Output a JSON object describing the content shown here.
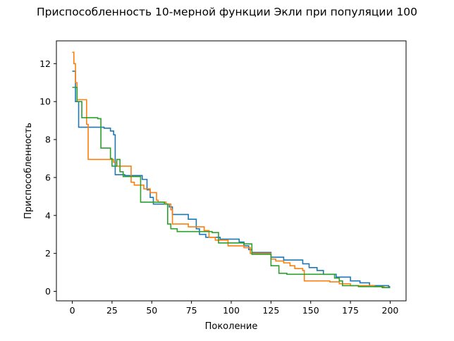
{
  "chart_data": {
    "type": "line",
    "title": "Приспособленность 10-мерной функции Экли при популяции 100",
    "xlabel": "Поколение",
    "ylabel": "Приспособленность",
    "xlim": [
      -10,
      210
    ],
    "ylim": [
      -0.5,
      13.2
    ],
    "xticks": [
      0,
      25,
      50,
      75,
      100,
      125,
      150,
      175,
      200
    ],
    "yticks": [
      0,
      2,
      4,
      6,
      8,
      10,
      12
    ],
    "grid": false,
    "series": [
      {
        "color": "#1f77b4",
        "points": [
          [
            0,
            11.6
          ],
          [
            2,
            11.6
          ],
          [
            2,
            10.0
          ],
          [
            4,
            10.0
          ],
          [
            4,
            8.65
          ],
          [
            20,
            8.65
          ],
          [
            20,
            8.6
          ],
          [
            24,
            8.6
          ],
          [
            24,
            8.45
          ],
          [
            26,
            8.45
          ],
          [
            26,
            8.25
          ],
          [
            27,
            8.25
          ],
          [
            27,
            6.15
          ],
          [
            33,
            6.15
          ],
          [
            33,
            6.1
          ],
          [
            44,
            6.1
          ],
          [
            44,
            5.9
          ],
          [
            47,
            5.9
          ],
          [
            47,
            5.35
          ],
          [
            49,
            5.35
          ],
          [
            49,
            4.95
          ],
          [
            51,
            4.95
          ],
          [
            51,
            4.6
          ],
          [
            61,
            4.6
          ],
          [
            61,
            4.45
          ],
          [
            63,
            4.45
          ],
          [
            63,
            4.05
          ],
          [
            73,
            4.05
          ],
          [
            73,
            3.8
          ],
          [
            78,
            3.8
          ],
          [
            78,
            3.3
          ],
          [
            80,
            3.3
          ],
          [
            80,
            3.0
          ],
          [
            84,
            3.0
          ],
          [
            84,
            2.85
          ],
          [
            93,
            2.85
          ],
          [
            93,
            2.75
          ],
          [
            105,
            2.75
          ],
          [
            105,
            2.6
          ],
          [
            108,
            2.6
          ],
          [
            108,
            2.4
          ],
          [
            111,
            2.4
          ],
          [
            111,
            2.2
          ],
          [
            113,
            2.2
          ],
          [
            113,
            2.05
          ],
          [
            125,
            2.05
          ],
          [
            125,
            1.8
          ],
          [
            133,
            1.8
          ],
          [
            133,
            1.65
          ],
          [
            145,
            1.65
          ],
          [
            145,
            1.45
          ],
          [
            149,
            1.45
          ],
          [
            149,
            1.25
          ],
          [
            154,
            1.25
          ],
          [
            154,
            1.1
          ],
          [
            158,
            1.1
          ],
          [
            158,
            0.9
          ],
          [
            166,
            0.9
          ],
          [
            166,
            0.75
          ],
          [
            175,
            0.75
          ],
          [
            175,
            0.55
          ],
          [
            181,
            0.55
          ],
          [
            181,
            0.45
          ],
          [
            187,
            0.45
          ],
          [
            187,
            0.3
          ],
          [
            199,
            0.3
          ],
          [
            199,
            0.25
          ],
          [
            200,
            0.25
          ]
        ]
      },
      {
        "color": "#ff7f0e",
        "points": [
          [
            0,
            12.6
          ],
          [
            1,
            12.6
          ],
          [
            1,
            12.0
          ],
          [
            2,
            12.0
          ],
          [
            2,
            11.0
          ],
          [
            3,
            11.0
          ],
          [
            3,
            10.1
          ],
          [
            9,
            10.1
          ],
          [
            9,
            8.8
          ],
          [
            10,
            8.8
          ],
          [
            10,
            6.95
          ],
          [
            26,
            6.95
          ],
          [
            26,
            6.8
          ],
          [
            28,
            6.8
          ],
          [
            28,
            6.6
          ],
          [
            37,
            6.6
          ],
          [
            37,
            5.75
          ],
          [
            39,
            5.75
          ],
          [
            39,
            5.6
          ],
          [
            45,
            5.6
          ],
          [
            45,
            5.4
          ],
          [
            49,
            5.4
          ],
          [
            49,
            5.2
          ],
          [
            53,
            5.2
          ],
          [
            53,
            4.8
          ],
          [
            54,
            4.8
          ],
          [
            54,
            4.7
          ],
          [
            59,
            4.7
          ],
          [
            59,
            4.6
          ],
          [
            62,
            4.6
          ],
          [
            62,
            4.3
          ],
          [
            63,
            4.3
          ],
          [
            63,
            3.55
          ],
          [
            73,
            3.55
          ],
          [
            73,
            3.4
          ],
          [
            83,
            3.4
          ],
          [
            83,
            3.2
          ],
          [
            86,
            3.2
          ],
          [
            86,
            2.85
          ],
          [
            90,
            2.85
          ],
          [
            90,
            2.7
          ],
          [
            98,
            2.7
          ],
          [
            98,
            2.4
          ],
          [
            108,
            2.4
          ],
          [
            108,
            2.3
          ],
          [
            112,
            2.3
          ],
          [
            112,
            2.0
          ],
          [
            125,
            2.0
          ],
          [
            125,
            1.7
          ],
          [
            128,
            1.7
          ],
          [
            128,
            1.6
          ],
          [
            133,
            1.6
          ],
          [
            133,
            1.5
          ],
          [
            137,
            1.5
          ],
          [
            137,
            1.35
          ],
          [
            140,
            1.35
          ],
          [
            140,
            1.2
          ],
          [
            145,
            1.2
          ],
          [
            145,
            1.1
          ],
          [
            146,
            1.1
          ],
          [
            146,
            0.55
          ],
          [
            162,
            0.55
          ],
          [
            162,
            0.5
          ],
          [
            168,
            0.5
          ],
          [
            168,
            0.4
          ],
          [
            175,
            0.4
          ],
          [
            175,
            0.3
          ],
          [
            190,
            0.3
          ],
          [
            190,
            0.25
          ],
          [
            196,
            0.25
          ],
          [
            196,
            0.2
          ],
          [
            200,
            0.2
          ]
        ]
      },
      {
        "color": "#2ca02c",
        "points": [
          [
            0,
            10.75
          ],
          [
            3,
            10.75
          ],
          [
            3,
            10.0
          ],
          [
            6,
            10.0
          ],
          [
            6,
            9.15
          ],
          [
            16,
            9.15
          ],
          [
            16,
            9.1
          ],
          [
            18,
            9.1
          ],
          [
            18,
            7.55
          ],
          [
            24,
            7.55
          ],
          [
            24,
            7.0
          ],
          [
            25,
            7.0
          ],
          [
            25,
            6.6
          ],
          [
            28,
            6.6
          ],
          [
            28,
            6.95
          ],
          [
            30,
            6.95
          ],
          [
            30,
            6.3
          ],
          [
            32,
            6.3
          ],
          [
            32,
            6.05
          ],
          [
            43,
            6.05
          ],
          [
            43,
            4.7
          ],
          [
            58,
            4.7
          ],
          [
            58,
            4.6
          ],
          [
            60,
            4.6
          ],
          [
            60,
            3.55
          ],
          [
            62,
            3.55
          ],
          [
            62,
            3.3
          ],
          [
            66,
            3.3
          ],
          [
            66,
            3.15
          ],
          [
            88,
            3.15
          ],
          [
            88,
            3.1
          ],
          [
            92,
            3.1
          ],
          [
            92,
            2.55
          ],
          [
            108,
            2.55
          ],
          [
            108,
            2.5
          ],
          [
            113,
            2.5
          ],
          [
            113,
            1.95
          ],
          [
            125,
            1.95
          ],
          [
            125,
            1.35
          ],
          [
            130,
            1.35
          ],
          [
            130,
            0.95
          ],
          [
            135,
            0.95
          ],
          [
            135,
            0.9
          ],
          [
            165,
            0.9
          ],
          [
            165,
            0.7
          ],
          [
            168,
            0.7
          ],
          [
            168,
            0.55
          ],
          [
            170,
            0.55
          ],
          [
            170,
            0.3
          ],
          [
            180,
            0.3
          ],
          [
            180,
            0.25
          ],
          [
            195,
            0.25
          ],
          [
            195,
            0.2
          ],
          [
            200,
            0.2
          ]
        ]
      }
    ]
  }
}
